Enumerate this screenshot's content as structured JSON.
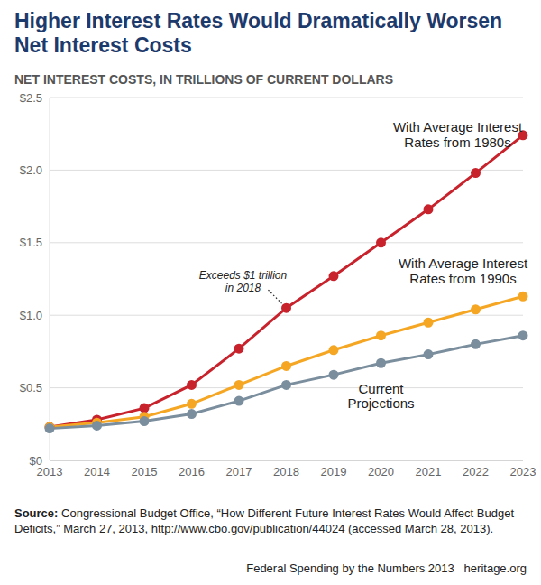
{
  "chart_data": {
    "type": "line",
    "title": "Higher Interest Rates Would Dramatically Worsen Net Interest Costs",
    "subtitle": "NET INTEREST COSTS, IN TRILLIONS OF CURRENT DOLLARS",
    "categories": [
      "2013",
      "2014",
      "2015",
      "2016",
      "2017",
      "2018",
      "2019",
      "2020",
      "2021",
      "2022",
      "2023"
    ],
    "series": [
      {
        "name": "With Average Interest Rates from 1980s",
        "color": "#c8232c",
        "marker": "circle",
        "values": [
          0.23,
          0.28,
          0.36,
          0.52,
          0.77,
          1.05,
          1.27,
          1.5,
          1.73,
          1.98,
          2.24
        ]
      },
      {
        "name": "With Average Interest Rates from 1990s",
        "color": "#f5a623",
        "marker": "circle",
        "values": [
          0.23,
          0.26,
          0.3,
          0.39,
          0.52,
          0.65,
          0.76,
          0.86,
          0.95,
          1.04,
          1.13
        ]
      },
      {
        "name": "Current Projections",
        "color": "#7a8e9e",
        "marker": "circle",
        "values": [
          0.22,
          0.24,
          0.27,
          0.32,
          0.41,
          0.52,
          0.59,
          0.67,
          0.73,
          0.8,
          0.86
        ]
      }
    ],
    "ylim": [
      0,
      2.5
    ],
    "yticks": [
      {
        "value": 0,
        "label": "$0"
      },
      {
        "value": 0.5,
        "label": "$0.5"
      },
      {
        "value": 1.0,
        "label": "$1.0"
      },
      {
        "value": 1.5,
        "label": "$1.5"
      },
      {
        "value": 2.0,
        "label": "$2.0"
      },
      {
        "value": 2.5,
        "label": "$2.5"
      }
    ],
    "grid": true,
    "annotations": [
      {
        "text": "Exceeds $1 trillion in 2018",
        "x": "2018",
        "series": "With Average Interest Rates from 1980s"
      }
    ],
    "source_label": "Source:",
    "source": "Congressional Budget Office, “How Different Future Interest Rates Would Affect Budget Deficits,” March 27, 2013, http://www.cbo.gov/publication/44024 (accessed March 28, 2013).",
    "footer": "Federal Spending by the Numbers 2013",
    "footer_site": "heritage.org"
  }
}
